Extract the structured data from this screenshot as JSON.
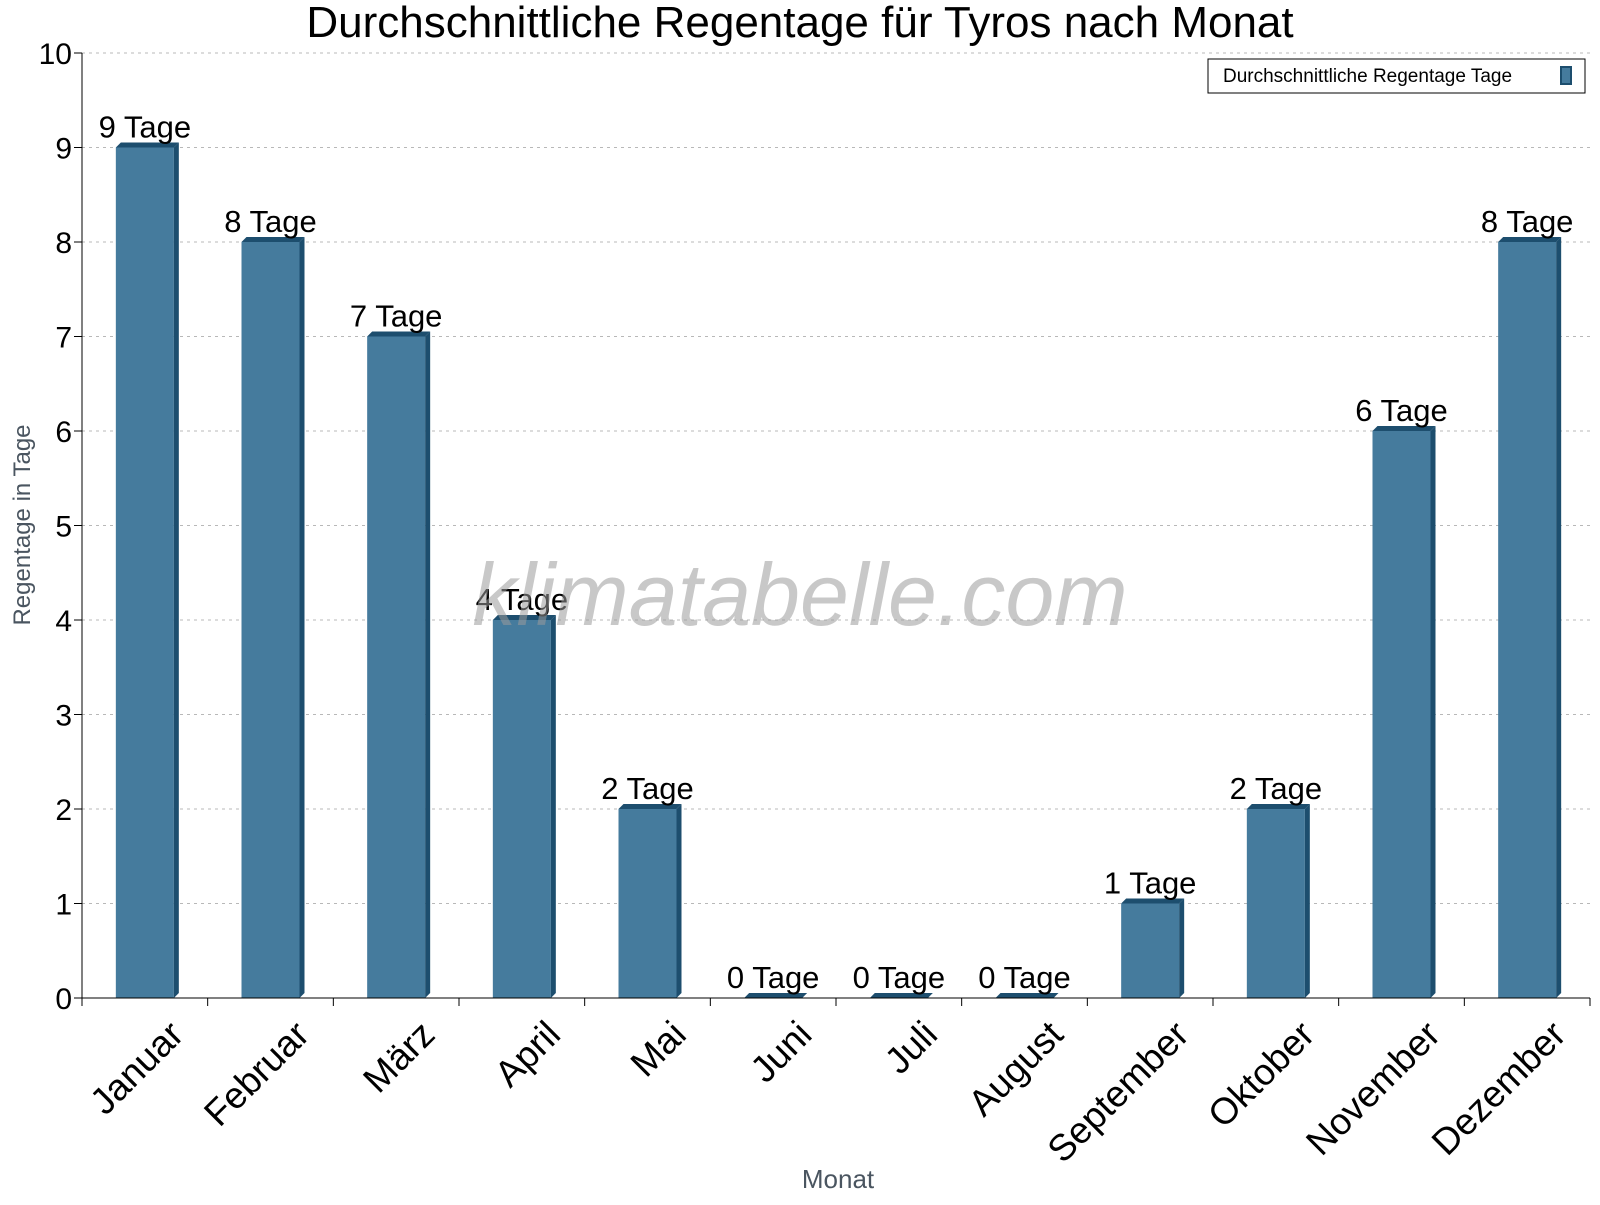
{
  "chart_data": {
    "type": "bar",
    "title": "Durchschnittliche Regentage für Tyros nach Monat",
    "xlabel": "Monat",
    "ylabel": "Regentage in Tage",
    "ylim": [
      0,
      10
    ],
    "yticks": [
      0,
      1,
      2,
      3,
      4,
      5,
      6,
      7,
      8,
      9,
      10
    ],
    "grid": true,
    "legend_position": "top-right",
    "categories": [
      "Januar",
      "Februar",
      "März",
      "April",
      "Mai",
      "Juni",
      "Juli",
      "August",
      "September",
      "Oktober",
      "November",
      "Dezember"
    ],
    "series": [
      {
        "name": "Durchschnittliche Regentage Tage",
        "values": [
          9,
          8,
          7,
          4,
          2,
          0,
          0,
          0,
          1,
          2,
          6,
          8
        ],
        "data_labels": [
          "9 Tage",
          "8 Tage",
          "7 Tage",
          "4 Tage",
          "2 Tage",
          "0 Tage",
          "0 Tage",
          "0 Tage",
          "1 Tage",
          "2 Tage",
          "6 Tage",
          "8 Tage"
        ],
        "color": "#457b9d",
        "side_color": "#1d4e6e"
      }
    ]
  },
  "watermark": "klimatabelle.com"
}
